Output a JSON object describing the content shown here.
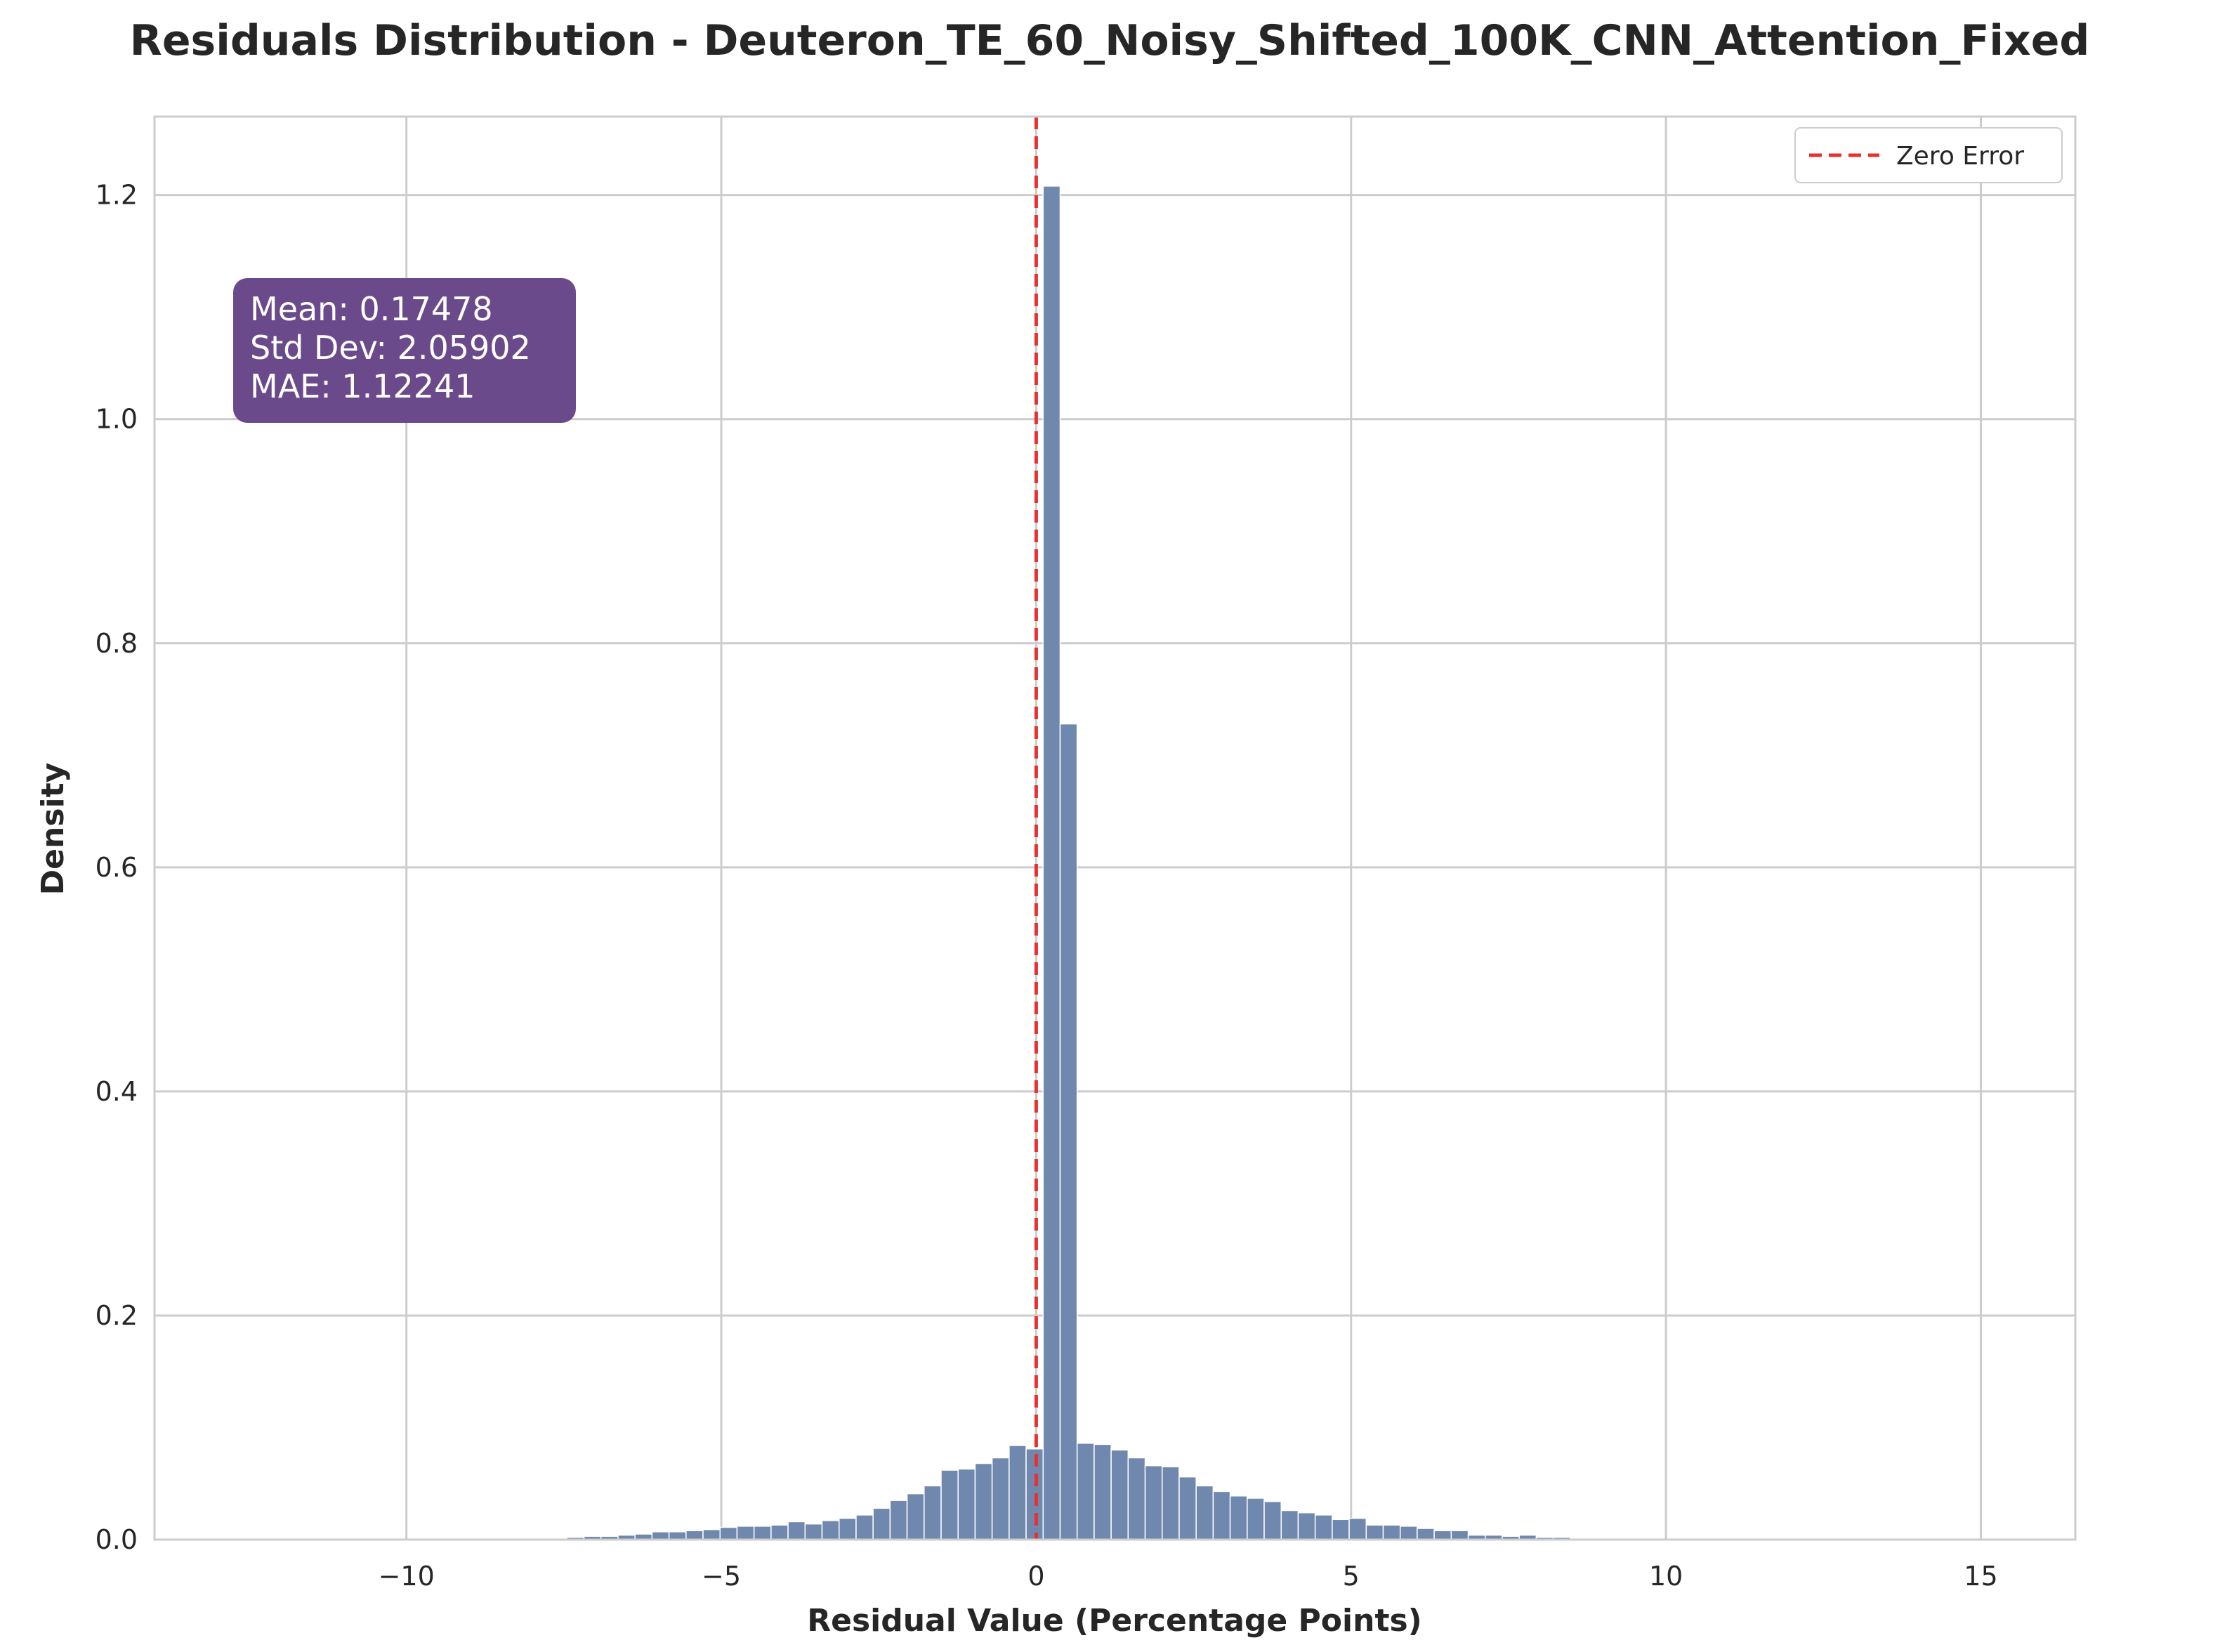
{
  "chart_data": {
    "type": "bar",
    "title": "Residuals Distribution - Deuteron_TE_60_Noisy_Shifted_100K_CNN_Attention_Fixed",
    "xlabel": "Residual Value (Percentage Points)",
    "ylabel": "Density",
    "xlim": [
      -14.0,
      16.5
    ],
    "ylim": [
      0,
      1.27
    ],
    "xticks": [
      -10,
      -5,
      0,
      5,
      10,
      15
    ],
    "xtick_labels": [
      "−10",
      "−5",
      "0",
      "5",
      "10",
      "15"
    ],
    "yticks": [
      0.0,
      0.2,
      0.4,
      0.6,
      0.8,
      1.0,
      1.2
    ],
    "ytick_labels": [
      "0.0",
      "0.2",
      "0.4",
      "0.6",
      "0.8",
      "1.0",
      "1.2"
    ],
    "grid": true,
    "bin_width": 0.27,
    "bins": [
      {
        "x0": -7.72,
        "density": 0.001
      },
      {
        "x0": -7.45,
        "density": 0.002
      },
      {
        "x0": -7.18,
        "density": 0.003
      },
      {
        "x0": -6.91,
        "density": 0.003
      },
      {
        "x0": -6.64,
        "density": 0.004
      },
      {
        "x0": -6.37,
        "density": 0.005
      },
      {
        "x0": -6.1,
        "density": 0.007
      },
      {
        "x0": -5.83,
        "density": 0.007
      },
      {
        "x0": -5.56,
        "density": 0.008
      },
      {
        "x0": -5.29,
        "density": 0.009
      },
      {
        "x0": -5.02,
        "density": 0.011
      },
      {
        "x0": -4.75,
        "density": 0.012
      },
      {
        "x0": -4.48,
        "density": 0.012
      },
      {
        "x0": -4.21,
        "density": 0.013
      },
      {
        "x0": -3.94,
        "density": 0.016
      },
      {
        "x0": -3.67,
        "density": 0.014
      },
      {
        "x0": -3.4,
        "density": 0.017
      },
      {
        "x0": -3.13,
        "density": 0.019
      },
      {
        "x0": -2.86,
        "density": 0.022
      },
      {
        "x0": -2.59,
        "density": 0.028
      },
      {
        "x0": -2.32,
        "density": 0.035
      },
      {
        "x0": -2.05,
        "density": 0.041
      },
      {
        "x0": -1.78,
        "density": 0.048
      },
      {
        "x0": -1.51,
        "density": 0.062
      },
      {
        "x0": -1.24,
        "density": 0.063
      },
      {
        "x0": -0.97,
        "density": 0.068
      },
      {
        "x0": -0.7,
        "density": 0.073
      },
      {
        "x0": -0.43,
        "density": 0.084
      },
      {
        "x0": -0.16,
        "density": 0.081
      },
      {
        "x0": 0.11,
        "density": 1.208
      },
      {
        "x0": 0.38,
        "density": 0.728
      },
      {
        "x0": 0.65,
        "density": 0.086
      },
      {
        "x0": 0.92,
        "density": 0.085
      },
      {
        "x0": 1.19,
        "density": 0.08
      },
      {
        "x0": 1.46,
        "density": 0.073
      },
      {
        "x0": 1.73,
        "density": 0.066
      },
      {
        "x0": 2.0,
        "density": 0.065
      },
      {
        "x0": 2.27,
        "density": 0.056
      },
      {
        "x0": 2.54,
        "density": 0.048
      },
      {
        "x0": 2.81,
        "density": 0.043
      },
      {
        "x0": 3.08,
        "density": 0.039
      },
      {
        "x0": 3.35,
        "density": 0.037
      },
      {
        "x0": 3.62,
        "density": 0.034
      },
      {
        "x0": 3.89,
        "density": 0.026
      },
      {
        "x0": 4.16,
        "density": 0.024
      },
      {
        "x0": 4.43,
        "density": 0.022
      },
      {
        "x0": 4.7,
        "density": 0.018
      },
      {
        "x0": 4.97,
        "density": 0.019
      },
      {
        "x0": 5.24,
        "density": 0.013
      },
      {
        "x0": 5.51,
        "density": 0.013
      },
      {
        "x0": 5.78,
        "density": 0.012
      },
      {
        "x0": 6.05,
        "density": 0.01
      },
      {
        "x0": 6.32,
        "density": 0.008
      },
      {
        "x0": 6.59,
        "density": 0.008
      },
      {
        "x0": 6.86,
        "density": 0.004
      },
      {
        "x0": 7.13,
        "density": 0.004
      },
      {
        "x0": 7.4,
        "density": 0.003
      },
      {
        "x0": 7.67,
        "density": 0.004
      },
      {
        "x0": 7.94,
        "density": 0.002
      },
      {
        "x0": 8.21,
        "density": 0.002
      },
      {
        "x0": 8.48,
        "density": 0.001
      },
      {
        "x0": 8.75,
        "density": 0.001
      }
    ],
    "zero_line": {
      "x": 0,
      "label": "Zero Error"
    },
    "legend": {
      "placement": "top-right",
      "entries": [
        "Zero Error"
      ]
    },
    "stats_box": {
      "lines": [
        "Mean: 0.17478",
        "Std Dev: 2.05902",
        "MAE: 1.12241"
      ]
    }
  },
  "colors": {
    "bar": "#7088ad",
    "grid": "#cccccc",
    "spine": "#cccccc",
    "zero_line": "#e63131",
    "stats_box": "#6b4a8c",
    "text": "#262626"
  }
}
